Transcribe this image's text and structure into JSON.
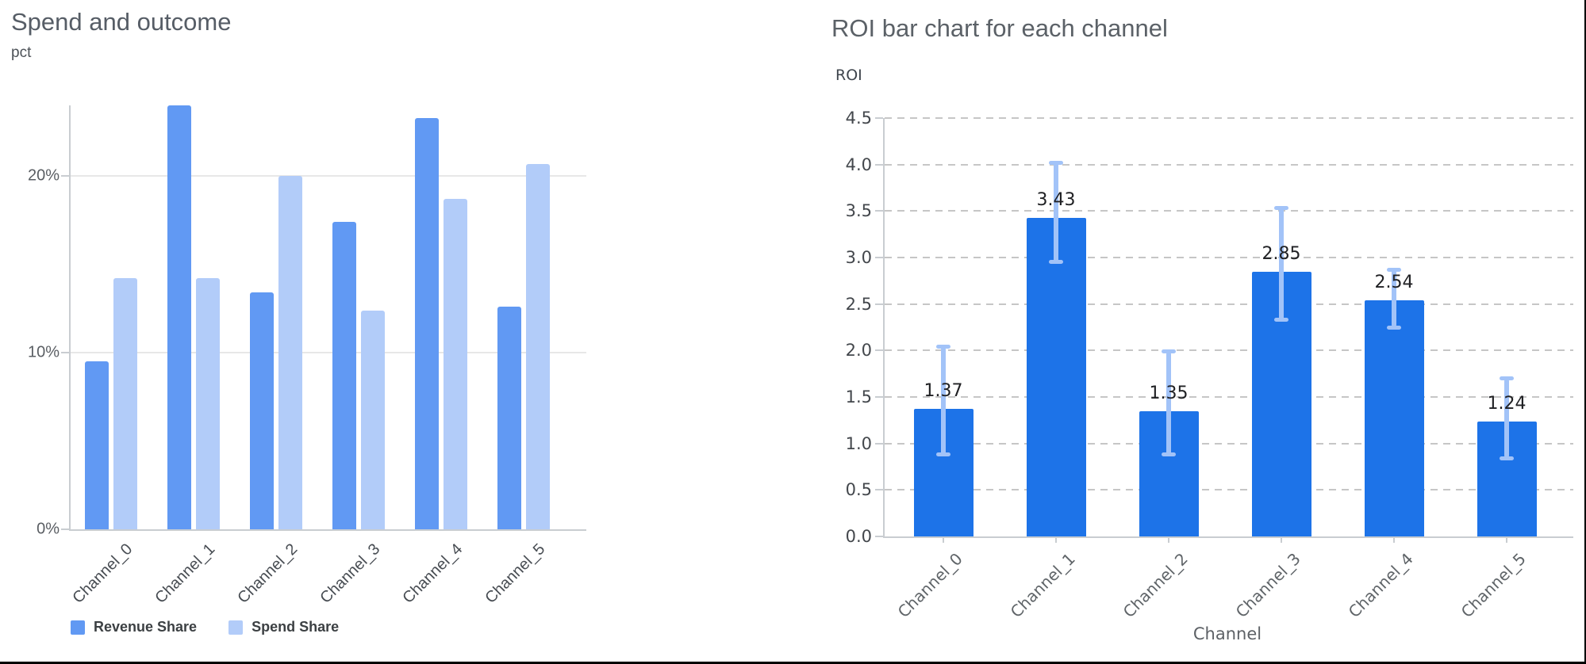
{
  "chart_data": [
    {
      "type": "bar",
      "title": "Spend and outcome",
      "ylabel": "pct",
      "xlabel": "",
      "categories": [
        "Channel_0",
        "Channel_1",
        "Channel_2",
        "Channel_3",
        "Channel_4",
        "Channel_5"
      ],
      "series": [
        {
          "name": "Revenue Share",
          "color": "#6199f3",
          "values": [
            9.5,
            24.0,
            13.4,
            17.4,
            23.3,
            12.6
          ]
        },
        {
          "name": "Spend Share",
          "color": "#b2ccf9",
          "values": [
            14.2,
            14.2,
            20.0,
            12.4,
            18.7,
            20.7
          ]
        }
      ],
      "value_unit": "percent",
      "ylim": [
        0,
        24
      ],
      "yticks": [
        0,
        10,
        20
      ],
      "ytick_labels": [
        "0%",
        "10%",
        "20%"
      ],
      "grid": true,
      "legend_position": "bottom"
    },
    {
      "type": "bar",
      "title": "ROI bar chart for each channel",
      "ylabel": "ROI",
      "xlabel": "Channel",
      "categories": [
        "Channel_0",
        "Channel_1",
        "Channel_2",
        "Channel_3",
        "Channel_4",
        "Channel_5"
      ],
      "values": [
        1.37,
        3.43,
        1.35,
        2.85,
        2.54,
        1.24
      ],
      "data_labels": [
        "1.37",
        "3.43",
        "1.35",
        "2.85",
        "2.54",
        "1.24"
      ],
      "error_low": [
        0.88,
        2.95,
        0.88,
        2.33,
        2.25,
        0.84
      ],
      "error_high": [
        2.04,
        4.02,
        1.99,
        3.53,
        2.87,
        1.7
      ],
      "bar_color": "#1d73e8",
      "error_color": "#a2c3f8",
      "ylim": [
        0,
        4.5
      ],
      "yticks": [
        0,
        0.5,
        1.0,
        1.5,
        2.0,
        2.5,
        3.0,
        3.5,
        4.0,
        4.5
      ],
      "ytick_labels": [
        "0.0",
        "0.5",
        "1.0",
        "1.5",
        "2.0",
        "2.5",
        "3.0",
        "3.5",
        "4.0",
        "4.5"
      ],
      "grid": "dashed",
      "legend_position": "none"
    }
  ]
}
